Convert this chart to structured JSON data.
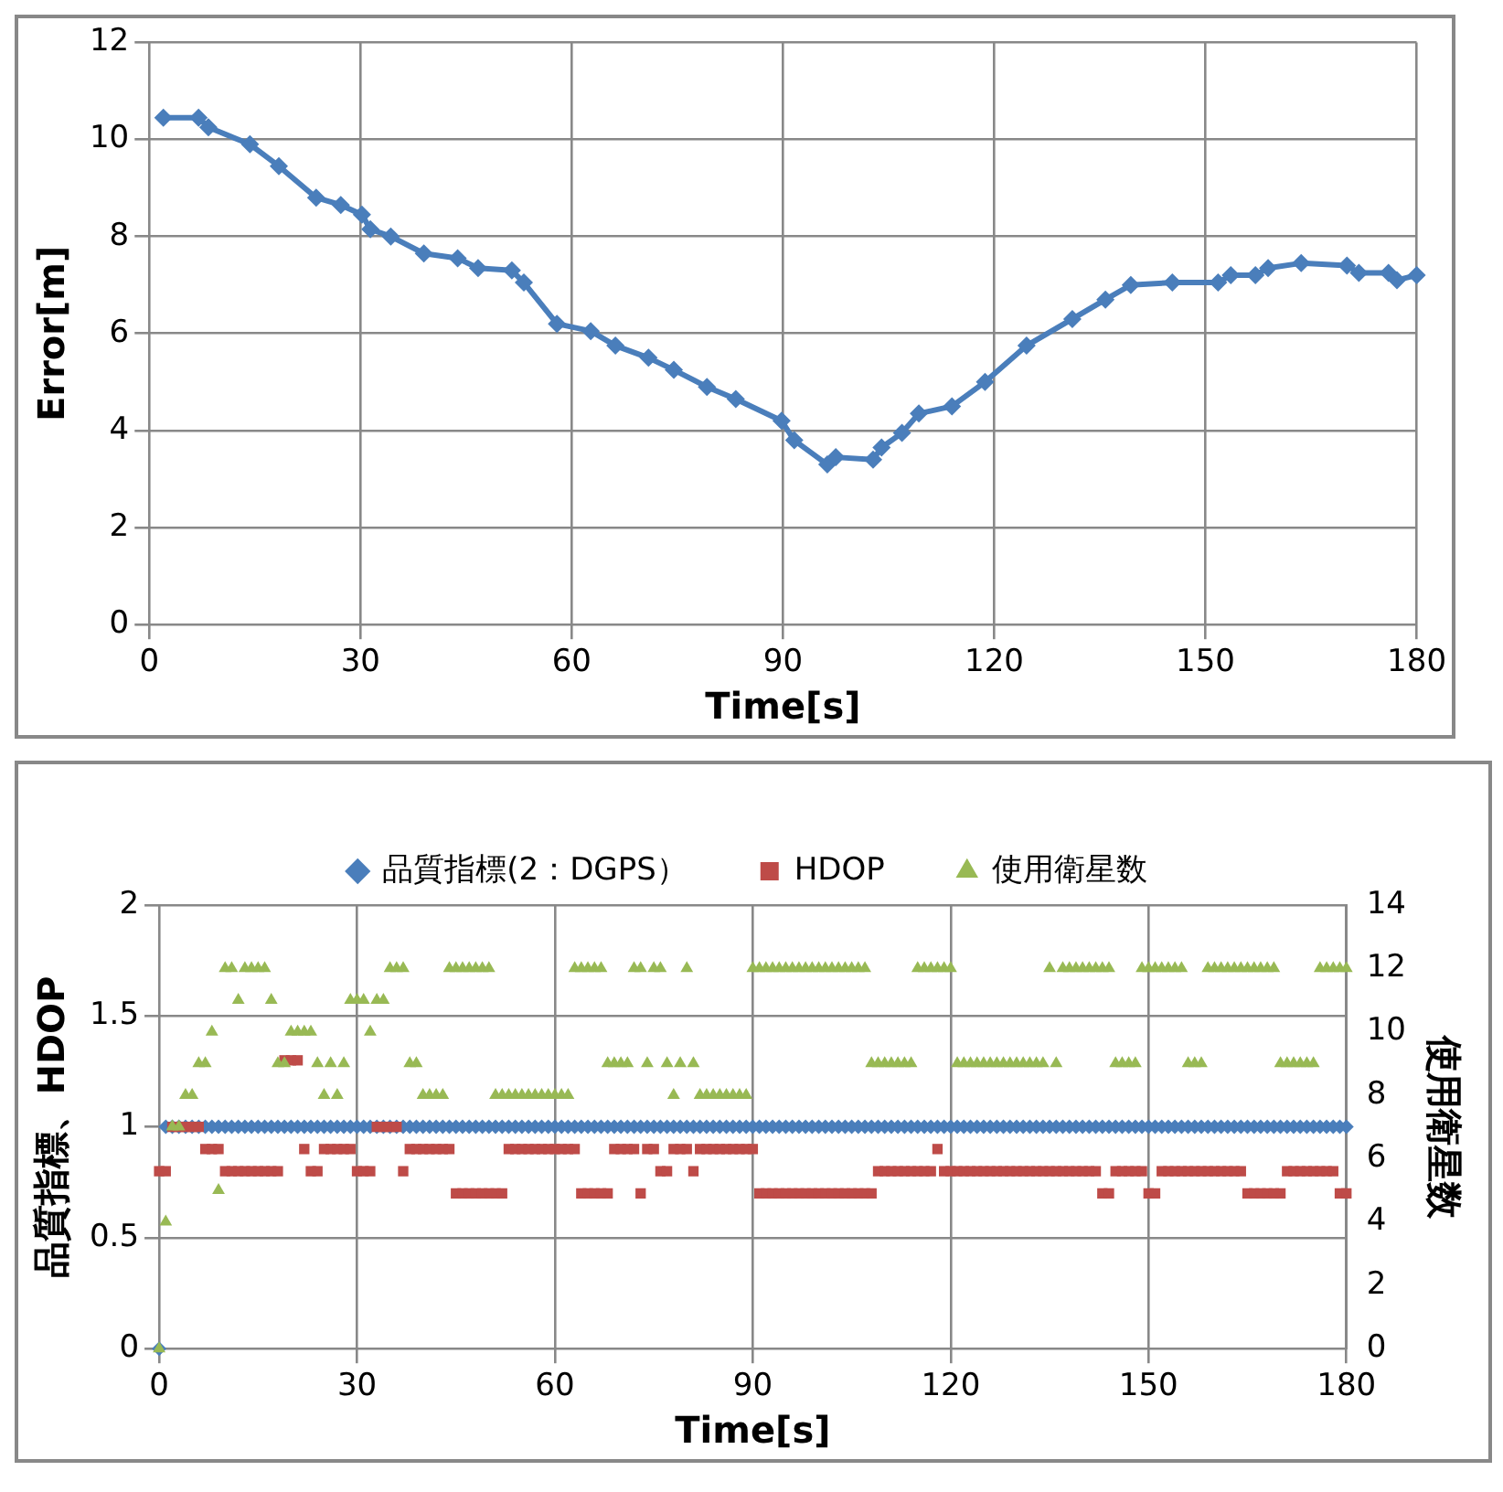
{
  "chart_data": [
    {
      "type": "line",
      "xlabel": "Time[s]",
      "ylabel": "Error[m]",
      "xlim": [
        0,
        180
      ],
      "xticks": [
        0,
        30,
        60,
        90,
        120,
        150,
        180
      ],
      "ylim": [
        0,
        12
      ],
      "yticks": [
        0,
        2,
        4,
        6,
        8,
        10,
        12
      ],
      "grid": true,
      "legend": false,
      "marker": "diamond",
      "series": [
        {
          "color": "#4a7ebb",
          "x": [
            2,
            7,
            8.4,
            14.3,
            18.4,
            23.7,
            27.2,
            30.2,
            31.4,
            34.3,
            39,
            43.8,
            46.7,
            51.5,
            53.2,
            57.9,
            62.7,
            66.2,
            70.9,
            74.5,
            79.2,
            83.3,
            89.8,
            91.6,
            96.3,
            97.5,
            102.8,
            104,
            106.9,
            109.3,
            114,
            118.7,
            124.6,
            131.1,
            135.8,
            139.4,
            145.3,
            151.8,
            153.6,
            157.1,
            158.9,
            163.6,
            170.1,
            171.8,
            176,
            177.2,
            180
          ],
          "values": [
            10.45,
            10.45,
            10.25,
            9.9,
            9.45,
            8.8,
            8.65,
            8.45,
            8.15,
            8.0,
            7.65,
            7.55,
            7.35,
            7.3,
            7.05,
            6.2,
            6.05,
            5.75,
            5.5,
            5.25,
            4.9,
            4.65,
            4.2,
            3.8,
            3.3,
            3.45,
            3.4,
            3.65,
            3.95,
            4.35,
            4.5,
            5.0,
            5.75,
            6.3,
            6.7,
            7.0,
            7.05,
            7.05,
            7.2,
            7.2,
            7.35,
            7.45,
            7.4,
            7.25,
            7.25,
            7.1,
            7.2
          ]
        }
      ]
    },
    {
      "type": "scatter",
      "xlabel": "Time[s]",
      "ylabel": "品質指標、HDOP",
      "y2label": "使用衛星数",
      "xlim": [
        0,
        180
      ],
      "xticks": [
        0,
        30,
        60,
        90,
        120,
        150,
        180
      ],
      "ylim": [
        0,
        2
      ],
      "yticks": [
        0,
        0.5,
        1,
        1.5,
        2
      ],
      "y2lim": [
        0,
        14
      ],
      "y2ticks": [
        0,
        2,
        4,
        6,
        8,
        10,
        12,
        14
      ],
      "grid": true,
      "legend": "top",
      "x": [
        0,
        1,
        2,
        3,
        4,
        5,
        6,
        7,
        8,
        9,
        10,
        11,
        12,
        13,
        14,
        15,
        16,
        17,
        18,
        19,
        20,
        21,
        22,
        23,
        24,
        25,
        26,
        27,
        28,
        29,
        30,
        31,
        32,
        33,
        34,
        35,
        36,
        37,
        38,
        39,
        40,
        41,
        42,
        43,
        44,
        45,
        46,
        47,
        48,
        49,
        50,
        51,
        52,
        53,
        54,
        55,
        56,
        57,
        58,
        59,
        60,
        61,
        62,
        63,
        64,
        65,
        66,
        67,
        68,
        69,
        70,
        71,
        72,
        73,
        74,
        75,
        76,
        77,
        78,
        79,
        80,
        81,
        82,
        83,
        84,
        85,
        86,
        87,
        88,
        89,
        90,
        91,
        92,
        93,
        94,
        95,
        96,
        97,
        98,
        99,
        100,
        101,
        102,
        103,
        104,
        105,
        106,
        107,
        108,
        109,
        110,
        111,
        112,
        113,
        114,
        115,
        116,
        117,
        118,
        119,
        120,
        121,
        122,
        123,
        124,
        125,
        126,
        127,
        128,
        129,
        130,
        131,
        132,
        133,
        134,
        135,
        136,
        137,
        138,
        139,
        140,
        141,
        142,
        143,
        144,
        145,
        146,
        147,
        148,
        149,
        150,
        151,
        152,
        153,
        154,
        155,
        156,
        157,
        158,
        159,
        160,
        161,
        162,
        163,
        164,
        165,
        166,
        167,
        168,
        169,
        170,
        171,
        172,
        173,
        174,
        175,
        176,
        177,
        178,
        179,
        180
      ],
      "series": [
        {
          "name": "品質指標(2：DGPS）",
          "color": "#4a7ebb",
          "marker": "diamond",
          "values": [
            0,
            1,
            1,
            1,
            1,
            1,
            1,
            1,
            1,
            1,
            1,
            1,
            1,
            1,
            1,
            1,
            1,
            1,
            1,
            1,
            1,
            1,
            1,
            1,
            1,
            1,
            1,
            1,
            1,
            1,
            1,
            1,
            1,
            1,
            1,
            1,
            1,
            1,
            1,
            1,
            1,
            1,
            1,
            1,
            1,
            1,
            1,
            1,
            1,
            1,
            1,
            1,
            1,
            1,
            1,
            1,
            1,
            1,
            1,
            1,
            1,
            1,
            1,
            1,
            1,
            1,
            1,
            1,
            1,
            1,
            1,
            1,
            1,
            1,
            1,
            1,
            1,
            1,
            1,
            1,
            1,
            1,
            1,
            1,
            1,
            1,
            1,
            1,
            1,
            1,
            1,
            1,
            1,
            1,
            1,
            1,
            1,
            1,
            1,
            1,
            1,
            1,
            1,
            1,
            1,
            1,
            1,
            1,
            1,
            1,
            1,
            1,
            1,
            1,
            1,
            1,
            1,
            1,
            1,
            1,
            1,
            1,
            1,
            1,
            1,
            1,
            1,
            1,
            1,
            1,
            1,
            1,
            1,
            1,
            1,
            1,
            1,
            1,
            1,
            1,
            1,
            1,
            1,
            1,
            1,
            1,
            1,
            1,
            1,
            1,
            1,
            1,
            1,
            1,
            1,
            1,
            1,
            1,
            1,
            1,
            1,
            1,
            1,
            1,
            1,
            1,
            1,
            1,
            1,
            1,
            1,
            1,
            1,
            1,
            1,
            1,
            1,
            1,
            1,
            1,
            1
          ]
        },
        {
          "name": "HDOP",
          "color": "#be4b48",
          "marker": "square",
          "values": [
            0.8,
            0.8,
            1,
            1,
            1,
            1,
            1,
            0.9,
            0.9,
            0.9,
            0.8,
            0.8,
            0.8,
            0.8,
            0.8,
            0.8,
            0.8,
            0.8,
            0.8,
            1.3,
            1.3,
            1.3,
            0.9,
            0.8,
            0.8,
            0.9,
            0.9,
            0.9,
            0.9,
            0.9,
            0.8,
            0.8,
            0.8,
            1,
            1,
            1,
            1,
            0.8,
            0.9,
            0.9,
            0.9,
            0.9,
            0.9,
            0.9,
            0.9,
            0.7,
            0.7,
            0.7,
            0.7,
            0.7,
            0.7,
            0.7,
            0.7,
            0.9,
            0.9,
            0.9,
            0.9,
            0.9,
            0.9,
            0.9,
            0.9,
            0.9,
            0.9,
            0.9,
            0.7,
            0.7,
            0.7,
            0.7,
            0.7,
            0.9,
            0.9,
            0.9,
            0.9,
            0.7,
            0.9,
            0.9,
            0.8,
            0.8,
            0.9,
            0.9,
            0.9,
            0.8,
            0.9,
            0.9,
            0.9,
            0.9,
            0.9,
            0.9,
            0.9,
            0.9,
            0.9,
            0.7,
            0.7,
            0.7,
            0.7,
            0.7,
            0.7,
            0.7,
            0.7,
            0.7,
            0.7,
            0.7,
            0.7,
            0.7,
            0.7,
            0.7,
            0.7,
            0.7,
            0.7,
            0.8,
            0.8,
            0.8,
            0.8,
            0.8,
            0.8,
            0.8,
            0.8,
            0.8,
            0.9,
            0.8,
            0.8,
            0.8,
            0.8,
            0.8,
            0.8,
            0.8,
            0.8,
            0.8,
            0.8,
            0.8,
            0.8,
            0.8,
            0.8,
            0.8,
            0.8,
            0.8,
            0.8,
            0.8,
            0.8,
            0.8,
            0.8,
            0.8,
            0.8,
            0.7,
            0.7,
            0.8,
            0.8,
            0.8,
            0.8,
            0.8,
            0.7,
            0.7,
            0.8,
            0.8,
            0.8,
            0.8,
            0.8,
            0.8,
            0.8,
            0.8,
            0.8,
            0.8,
            0.8,
            0.8,
            0.8,
            0.7,
            0.7,
            0.7,
            0.7,
            0.7,
            0.7,
            0.8,
            0.8,
            0.8,
            0.8,
            0.8,
            0.8,
            0.8,
            0.8,
            0.7,
            0.7
          ]
        },
        {
          "name": "使用衛星数",
          "color": "#98b954",
          "marker": "triangle",
          "axis": "y2",
          "values": [
            0,
            4,
            7,
            7,
            8,
            8,
            9,
            9,
            10,
            5,
            12,
            12,
            11,
            12,
            12,
            12,
            12,
            11,
            9,
            9,
            10,
            10,
            10,
            10,
            9,
            8,
            9,
            8,
            9,
            11,
            11,
            11,
            10,
            11,
            11,
            12,
            12,
            12,
            9,
            9,
            8,
            8,
            8,
            8,
            12,
            12,
            12,
            12,
            12,
            12,
            12,
            8,
            8,
            8,
            8,
            8,
            8,
            8,
            8,
            8,
            8,
            8,
            8,
            12,
            12,
            12,
            12,
            12,
            9,
            9,
            9,
            9,
            12,
            12,
            9,
            12,
            12,
            9,
            8,
            9,
            12,
            9,
            8,
            8,
            8,
            8,
            8,
            8,
            8,
            8,
            12,
            12,
            12,
            12,
            12,
            12,
            12,
            12,
            12,
            12,
            12,
            12,
            12,
            12,
            12,
            12,
            12,
            12,
            9,
            9,
            9,
            9,
            9,
            9,
            9,
            12,
            12,
            12,
            12,
            12,
            12,
            9,
            9,
            9,
            9,
            9,
            9,
            9,
            9,
            9,
            9,
            9,
            9,
            9,
            9,
            12,
            9,
            12,
            12,
            12,
            12,
            12,
            12,
            12,
            12,
            9,
            9,
            9,
            9,
            12,
            12,
            12,
            12,
            12,
            12,
            12,
            9,
            9,
            9,
            12,
            12,
            12,
            12,
            12,
            12,
            12,
            12,
            12,
            12,
            12,
            9,
            9,
            9,
            9,
            9,
            9,
            12,
            12,
            12,
            12,
            12
          ]
        }
      ]
    }
  ]
}
